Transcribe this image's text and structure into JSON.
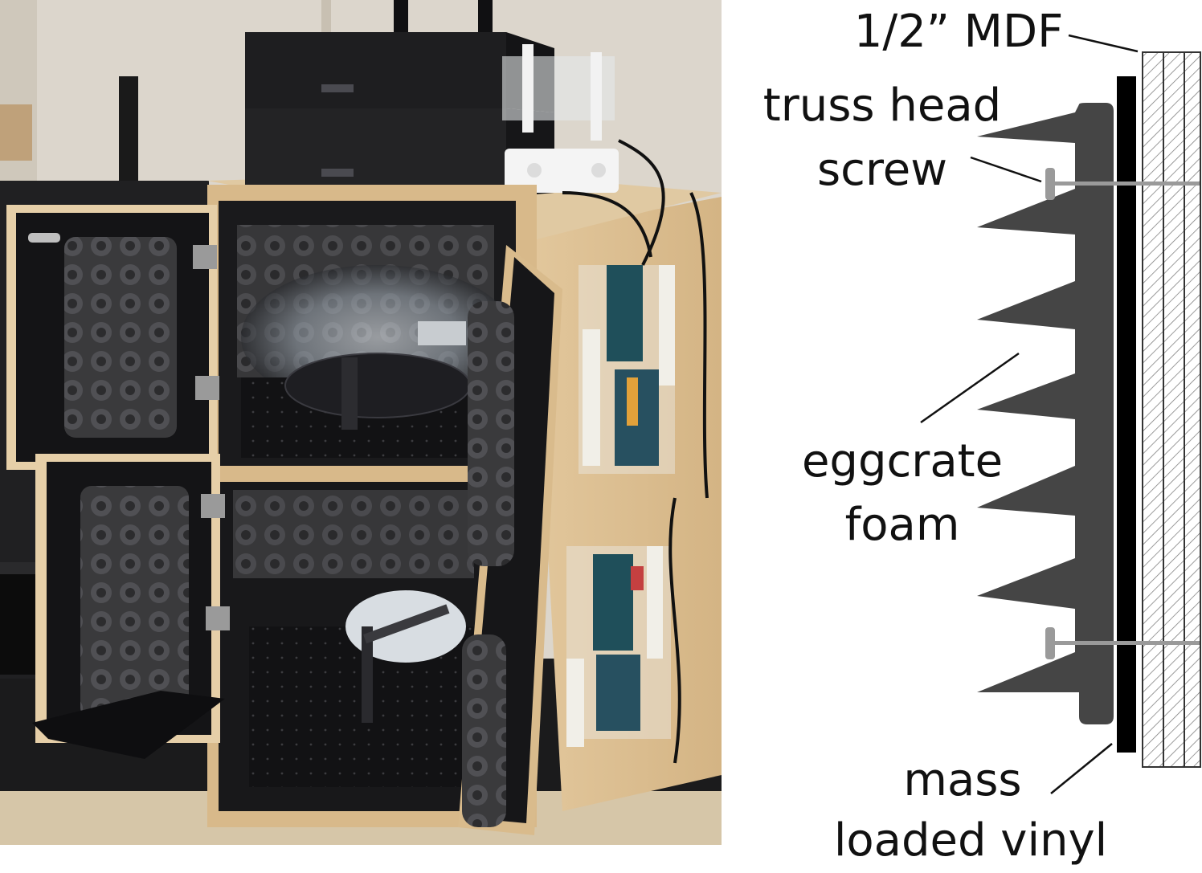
{
  "photo": {
    "subject": "acoustic enclosure cabinet with two open compartments, eggcrate foam lining, optical setups, electronics boards and two computers on top"
  },
  "diagram": {
    "labels": {
      "mdf": "1/2” MDF",
      "screw_line1": "truss head",
      "screw_line2": "screw",
      "foam_line1": "eggcrate",
      "foam_line2": "foam",
      "vinyl_line1": "mass",
      "vinyl_line2": "loaded vinyl"
    },
    "colors": {
      "foam": "#454545",
      "vinyl": "#000000",
      "screw": "#9a9a9a",
      "mdf_hatch": "#777777",
      "text": "#111111"
    }
  }
}
